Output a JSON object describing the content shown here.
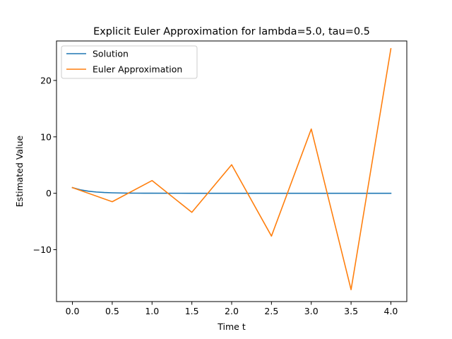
{
  "chart_data": {
    "type": "line",
    "title": "Explicit Euler Approximation for lambda=5.0, tau=0.5",
    "xlabel": "Time t",
    "ylabel": "Estimated Value",
    "xlim": [
      -0.2,
      4.2
    ],
    "ylim": [
      -19.2,
      27.0
    ],
    "xticks": [
      0.0,
      0.5,
      1.0,
      1.5,
      2.0,
      2.5,
      3.0,
      3.5,
      4.0
    ],
    "xtick_labels": [
      "0.0",
      "0.5",
      "1.0",
      "1.5",
      "2.0",
      "2.5",
      "3.0",
      "3.5",
      "4.0"
    ],
    "yticks": [
      -10,
      0,
      10,
      20
    ],
    "ytick_labels": [
      "−10",
      "0",
      "10",
      "20"
    ],
    "grid": false,
    "legend_position": "top-left",
    "series": [
      {
        "name": "Solution",
        "color": "#1f77b4",
        "x": [
          0.0,
          0.1,
          0.2,
          0.3,
          0.4,
          0.5,
          0.6,
          0.7,
          0.8,
          0.9,
          1.0,
          1.5,
          2.0,
          2.5,
          3.0,
          3.5,
          4.0
        ],
        "y": [
          1.0,
          0.607,
          0.368,
          0.223,
          0.135,
          0.082,
          0.05,
          0.03,
          0.018,
          0.011,
          0.007,
          0.0,
          0.0,
          0.0,
          0.0,
          0.0,
          0.0
        ]
      },
      {
        "name": "Euler Approximation",
        "color": "#ff7f0e",
        "x": [
          0.0,
          0.5,
          1.0,
          1.5,
          2.0,
          2.5,
          3.0,
          3.5,
          4.0
        ],
        "y": [
          1.0,
          -1.5,
          2.25,
          -3.375,
          5.0625,
          -7.594,
          11.39,
          -17.09,
          25.63
        ]
      }
    ]
  }
}
